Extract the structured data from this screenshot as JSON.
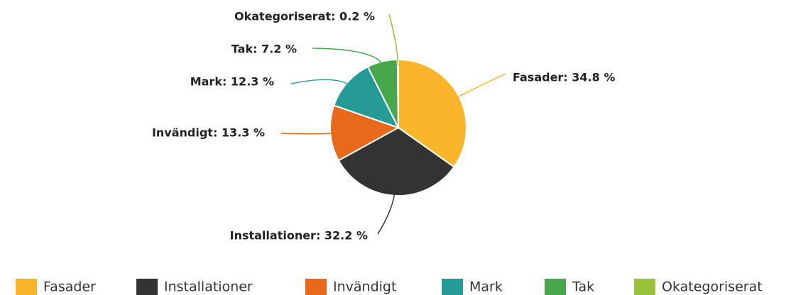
{
  "chart_data": {
    "type": "pie",
    "categories": [
      "Fasader",
      "Installationer",
      "Invändigt",
      "Mark",
      "Tak",
      "Okategoriserat"
    ],
    "values": [
      34.8,
      32.2,
      13.3,
      12.3,
      7.2,
      0.2
    ],
    "value_labels": [
      "Fasader: 34.8 %",
      "Installationer: 32.2 %",
      "Invändigt: 13.3 %",
      "Mark: 12.3 %",
      "Tak: 7.2 %",
      "Okategoriserat: 0.2 %"
    ],
    "colors": [
      "#fbb52a",
      "#333333",
      "#e8681c",
      "#249b94",
      "#46a84a",
      "#98c23c"
    ],
    "legend": "bottom"
  }
}
